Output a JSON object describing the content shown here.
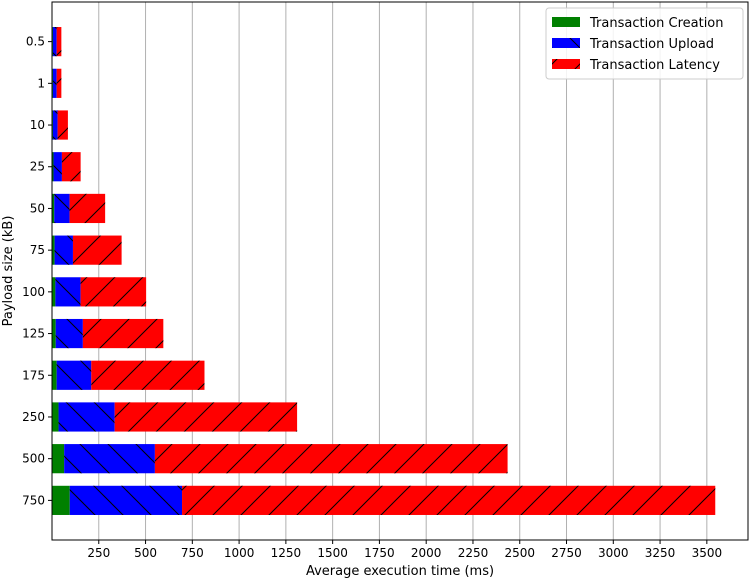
{
  "chart_data": {
    "type": "bar",
    "orientation": "horizontal",
    "stacked": true,
    "xlabel": "Average execution time (ms)",
    "ylabel": "Payload size (kB)",
    "xlim": [
      0,
      3720
    ],
    "xticks": [
      250,
      500,
      750,
      1000,
      1250,
      1500,
      1750,
      2000,
      2250,
      2500,
      2750,
      3000,
      3250,
      3500
    ],
    "grid": "vertical",
    "legend_position": "top-right",
    "categories": [
      "0.5",
      "1",
      "10",
      "25",
      "50",
      "75",
      "100",
      "125",
      "175",
      "250",
      "500",
      "750"
    ],
    "series": [
      {
        "name": "Transaction Creation",
        "color": "#008000",
        "hatch": "none",
        "values": [
          5,
          5,
          5,
          8,
          12,
          14,
          18,
          20,
          25,
          35,
          65,
          95
        ]
      },
      {
        "name": "Transaction Upload",
        "color": "#0000ff",
        "hatch": "backslash",
        "values": [
          20,
          20,
          25,
          45,
          82,
          98,
          135,
          145,
          185,
          300,
          485,
          600
        ]
      },
      {
        "name": "Transaction Latency",
        "color": "#ff0000",
        "hatch": "slash",
        "values": [
          25,
          25,
          55,
          100,
          190,
          260,
          350,
          430,
          605,
          975,
          1885,
          2850
        ]
      }
    ]
  }
}
